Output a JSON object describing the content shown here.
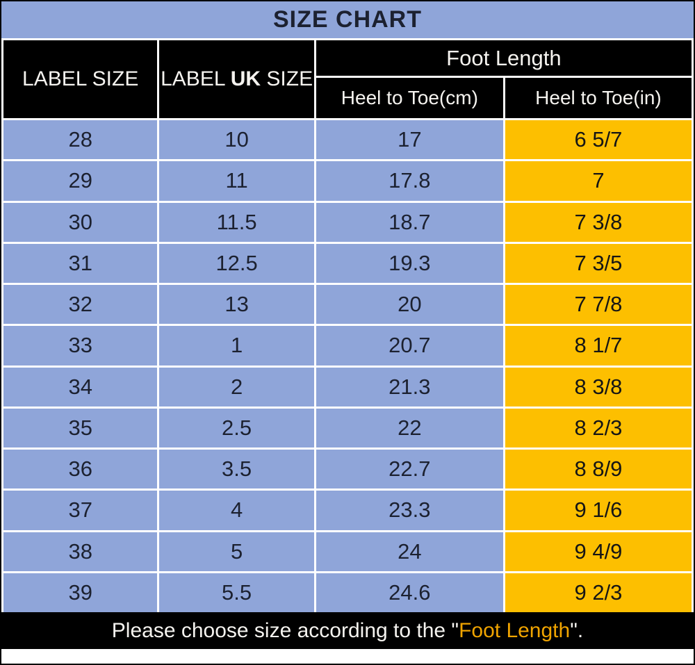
{
  "title": "SIZE CHART",
  "header": {
    "label_size": "LABEL SIZE",
    "label_uk_prefix": "LABEL ",
    "label_uk_bold": "UK",
    "label_uk_suffix": " SIZE",
    "foot_length": "Foot Length",
    "heel_to_toe_cm": "Heel to Toe(cm)",
    "heel_to_toe_in": "Heel to Toe(in)"
  },
  "footer": {
    "prefix": "Please choose size according to the \"",
    "highlight": "Foot Length",
    "suffix": "\"."
  },
  "colors": {
    "blue": "#8FA5D9",
    "orange": "#FDBF00",
    "black": "#000000",
    "footer_highlight": "#F0A400",
    "cell_text": "#1C2130"
  },
  "chart_data": {
    "type": "table",
    "title": "SIZE CHART",
    "columns": [
      "LABEL SIZE",
      "LABEL UK SIZE",
      "Heel to Toe(cm)",
      "Heel to Toe(in)"
    ],
    "column_groups": [
      {
        "label": "Foot Length",
        "spans": [
          "Heel to Toe(cm)",
          "Heel to Toe(in)"
        ]
      }
    ],
    "rows": [
      [
        "28",
        "10",
        "17",
        "6 5/7"
      ],
      [
        "29",
        "11",
        "17.8",
        "7"
      ],
      [
        "30",
        "11.5",
        "18.7",
        "7 3/8"
      ],
      [
        "31",
        "12.5",
        "19.3",
        "7 3/5"
      ],
      [
        "32",
        "13",
        "20",
        "7 7/8"
      ],
      [
        "33",
        "1",
        "20.7",
        "8 1/7"
      ],
      [
        "34",
        "2",
        "21.3",
        "8 3/8"
      ],
      [
        "35",
        "2.5",
        "22",
        "8 2/3"
      ],
      [
        "36",
        "3.5",
        "22.7",
        "8 8/9"
      ],
      [
        "37",
        "4",
        "23.3",
        "9 1/6"
      ],
      [
        "38",
        "5",
        "24",
        "9 4/9"
      ],
      [
        "39",
        "5.5",
        "24.6",
        "9 2/3"
      ]
    ],
    "note": "Please choose size according to the \"Foot Length\"."
  }
}
